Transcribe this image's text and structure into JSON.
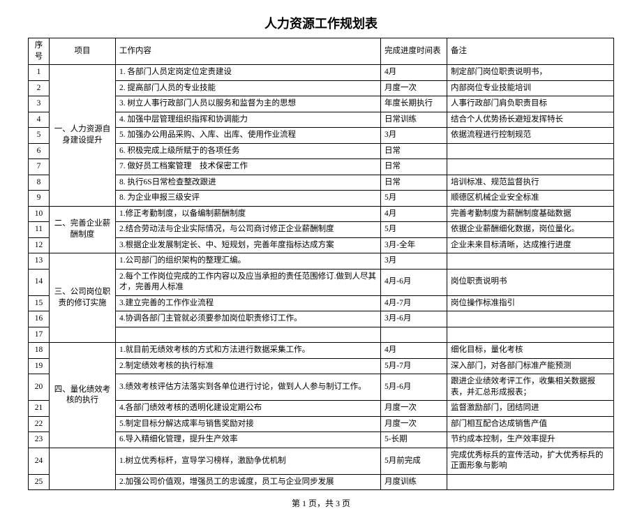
{
  "title": "人力资源工作规划表",
  "footer": "第 1 页，共 3 页",
  "headers": {
    "seq": "序号",
    "project": "项目",
    "content": "工作内容",
    "schedule": "完成进度时间表",
    "remark": "备注"
  },
  "project1": "一、人力资源自身建设提升",
  "project2": "二、完善企业薪酬制度",
  "project3": "三、公司岗位职责的修订实施",
  "project4": "四、量化绩效考核的执行",
  "rows": [
    {
      "seq": "1",
      "content": "1. 各部门人员定岗定位定责建设",
      "schedule": "4月",
      "remark": "制定部门岗位职责说明书，"
    },
    {
      "seq": "2",
      "content": "2. 提高部门人员的专业技能",
      "schedule": "月度一次",
      "remark": "内部岗位专业技能培训"
    },
    {
      "seq": "3",
      "content": "3. 树立人事行政部门人员以服务和监督为主的思想",
      "schedule": "年度长期执行",
      "remark": "人事行政部门肩负职责目标"
    },
    {
      "seq": "4",
      "content": "4. 加强中层管理组织指挥和协调能力",
      "schedule": "日常训练",
      "remark": "结合个人优势扬长避短发挥特长"
    },
    {
      "seq": "5",
      "content": "5. 加强办公用品采购、入库、出库、使用作业流程",
      "schedule": "3月",
      "remark": "依据流程进行控制规范"
    },
    {
      "seq": "6",
      "content": "6. 积极完成上级所赋于的各项任务",
      "schedule": "日常",
      "remark": ""
    },
    {
      "seq": "7",
      "content": "7. 做好员工档案管理　技术保密工作",
      "schedule": "日常",
      "remark": ""
    },
    {
      "seq": "8",
      "content": "8. 执行6S日常检查整改跟进",
      "schedule": "日常",
      "remark": "培训标准、规范监督执行"
    },
    {
      "seq": "9",
      "content": "8. 为企业申报三级安评",
      "schedule": "5月",
      "remark": "顺德区机械企业安全标准"
    },
    {
      "seq": "10",
      "content": "1.修正考勤制度，以备编制薪酬制度",
      "schedule": "4月",
      "remark": "完善考勤制度为薪酬制度基础数据"
    },
    {
      "seq": "11",
      "content": "2.结合劳动法与企业实际情况，与公司商讨修正企业薪酬制度",
      "schedule": "5月",
      "remark": "依据企业薪酬细化数据，岗位量化。"
    },
    {
      "seq": "12",
      "content": "3.根据企业发展制定长、中、短规划，完善年度指标达成方案",
      "schedule": "3月-全年",
      "remark": "企业未来目标清晰，达成推行进度"
    },
    {
      "seq": "13",
      "content": "1.公司部门的组织架构的整理汇编。",
      "schedule": "3月",
      "remark": ""
    },
    {
      "seq": "14",
      "content": "2.每个工作岗位完成的工作内容以及应当承担的责任范围修订.做到人尽其才，完善用人标准",
      "schedule": "4月-6月",
      "remark": "岗位职责说明书"
    },
    {
      "seq": "15",
      "content": "3.建立完善的工作作业流程",
      "schedule": "4月-7月",
      "remark": "岗位操作标准指引"
    },
    {
      "seq": "16",
      "content": "4.协调各部门主管就必须要参加岗位职责修订工作。",
      "schedule": "3月-6月",
      "remark": ""
    },
    {
      "seq": "17",
      "content": "",
      "schedule": "",
      "remark": ""
    },
    {
      "seq": "18",
      "content": "1.就目前无绩效考核的方式和方法进行数据采集工作。",
      "schedule": "4月",
      "remark": "细化目标，量化考核"
    },
    {
      "seq": "19",
      "content": "2.制定绩效考核的执行标准",
      "schedule": "5月-7月",
      "remark": "深入部门，对各部门标准产能预测"
    },
    {
      "seq": "20",
      "content": "3.绩效考核评估方法落实到各单位进行讨论，做到人人参与制订工作。",
      "schedule": "5月-6月",
      "remark": "跟进企业绩效考评工作，收集相关数据报表，并汇总形成报表；"
    },
    {
      "seq": "21",
      "content": "4.各部门绩效考核的透明化建设定期公布",
      "schedule": "月度一次",
      "remark": "监督激励部门，团结同进"
    },
    {
      "seq": "22",
      "content": "5.制定目标分解达成率与销售奖励对接",
      "schedule": "月度一次",
      "remark": "部门相互配合达成销售产值"
    },
    {
      "seq": "23",
      "content": "6.导入精细化管理，提升生产效率",
      "schedule": "5-长期",
      "remark": "节约成本控制，生产效率提升"
    },
    {
      "seq": "24",
      "content": "1.树立优秀标杆，宣导学习榜样，激励争优机制",
      "schedule": "5月前完成",
      "remark": "完成优秀标兵的宣传活动，扩大优秀标兵的正面形象与影响"
    },
    {
      "seq": "25",
      "content": "2.加强公司价值观，增强员工的忠诚度，员工与企业同步发展",
      "schedule": "月度训练",
      "remark": ""
    }
  ]
}
